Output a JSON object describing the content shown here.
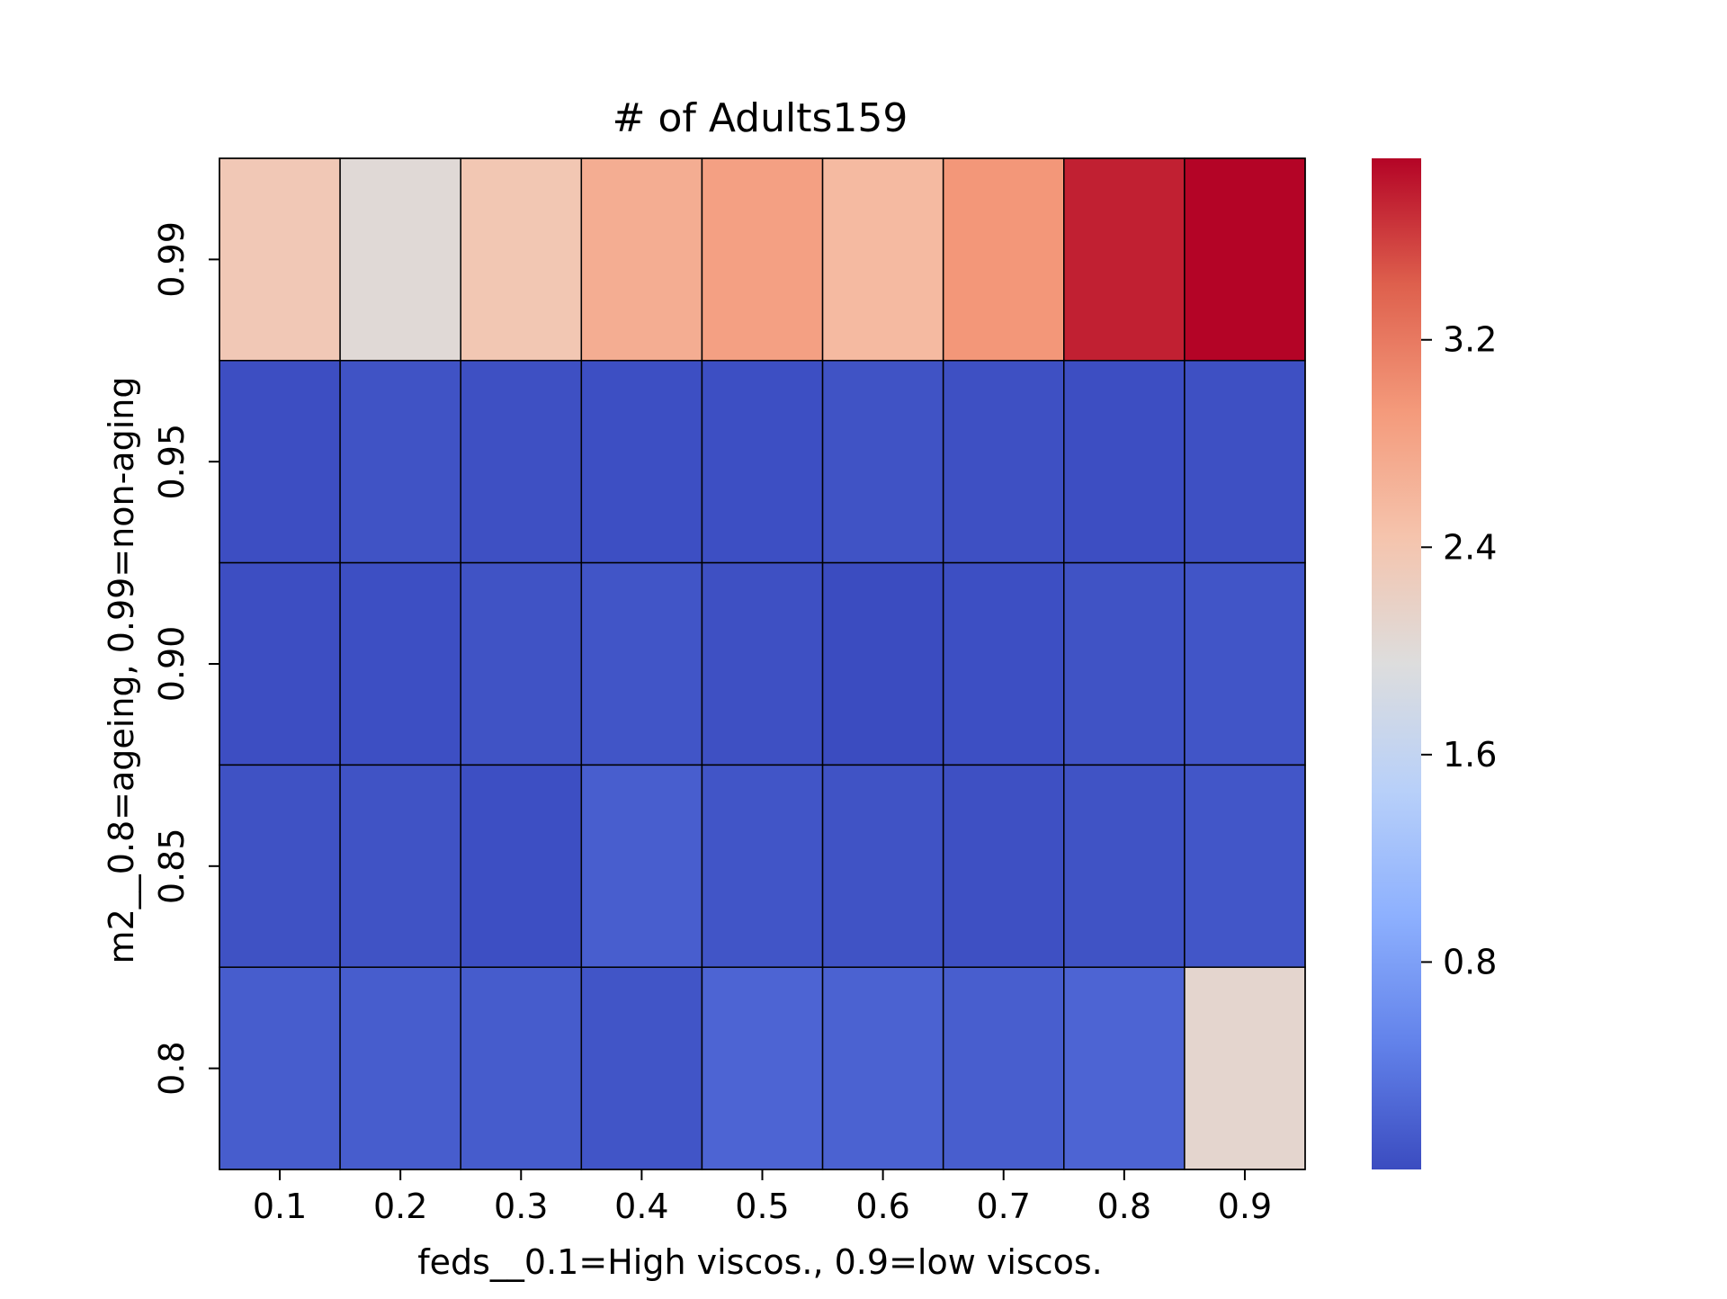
{
  "chart_data": {
    "type": "heatmap",
    "title": "# of Adults159",
    "xlabel": "feds__0.1=High viscos., 0.9=low viscos.",
    "ylabel": "m2__0.8=ageing, 0.99=non-aging",
    "x_categories": [
      "0.1",
      "0.2",
      "0.3",
      "0.4",
      "0.5",
      "0.6",
      "0.7",
      "0.8",
      "0.9"
    ],
    "y_categories": [
      "0.99",
      "0.95",
      "0.90",
      "0.85",
      "0.8"
    ],
    "values": [
      [
        2.35,
        2.02,
        2.38,
        2.7,
        2.85,
        2.55,
        2.95,
        3.75,
        3.9
      ],
      [
        0.02,
        0.06,
        0.04,
        0.03,
        0.03,
        0.06,
        0.04,
        0.02,
        0.04
      ],
      [
        0.02,
        0.03,
        0.06,
        0.08,
        0.04,
        0.0,
        0.03,
        0.06,
        0.08
      ],
      [
        0.05,
        0.06,
        0.03,
        0.16,
        0.08,
        0.06,
        0.04,
        0.06,
        0.09
      ],
      [
        0.15,
        0.15,
        0.14,
        0.08,
        0.22,
        0.2,
        0.16,
        0.22,
        2.1
      ]
    ],
    "colormap": "coolwarm",
    "vmin": 0.0,
    "vmax": 3.9,
    "colorbar_ticks": [
      "0.8",
      "1.6",
      "2.4",
      "3.2"
    ],
    "grid": true
  }
}
